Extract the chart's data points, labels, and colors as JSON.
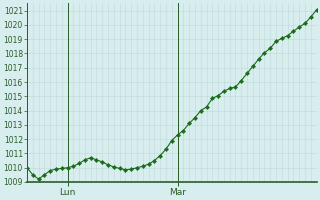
{
  "background_color": "#d8eeee",
  "plot_bg_color": "#d8eeee",
  "grid_color_v": "#c0d8d8",
  "grid_color_h": "#c0d8d8",
  "line_color": "#1a6b1a",
  "marker_color": "#1a6b1a",
  "ylim": [
    1009,
    1021.5
  ],
  "yticks": [
    1009,
    1010,
    1011,
    1012,
    1013,
    1014,
    1015,
    1016,
    1017,
    1018,
    1019,
    1020,
    1021
  ],
  "tick_color": "#2a5c2a",
  "axis_color": "#2a5c2a",
  "x_labels": [
    "Lun",
    "Mar"
  ],
  "values": [
    1010.0,
    1009.5,
    1009.2,
    1009.5,
    1009.8,
    1009.9,
    1009.95,
    1010.0,
    1010.1,
    1010.3,
    1010.55,
    1010.7,
    1010.55,
    1010.4,
    1010.2,
    1010.05,
    1009.95,
    1009.85,
    1009.9,
    1010.0,
    1010.1,
    1010.25,
    1010.5,
    1010.85,
    1011.3,
    1011.9,
    1012.3,
    1012.6,
    1013.1,
    1013.5,
    1014.0,
    1014.25,
    1014.85,
    1015.05,
    1015.35,
    1015.55,
    1015.65,
    1016.1,
    1016.6,
    1017.1,
    1017.6,
    1018.05,
    1018.35,
    1018.85,
    1019.05,
    1019.25,
    1019.55,
    1019.85,
    1020.1,
    1020.55,
    1021.05
  ],
  "lun_index": 7,
  "mar_index": 26,
  "figsize": [
    3.2,
    2.0
  ],
  "dpi": 100
}
